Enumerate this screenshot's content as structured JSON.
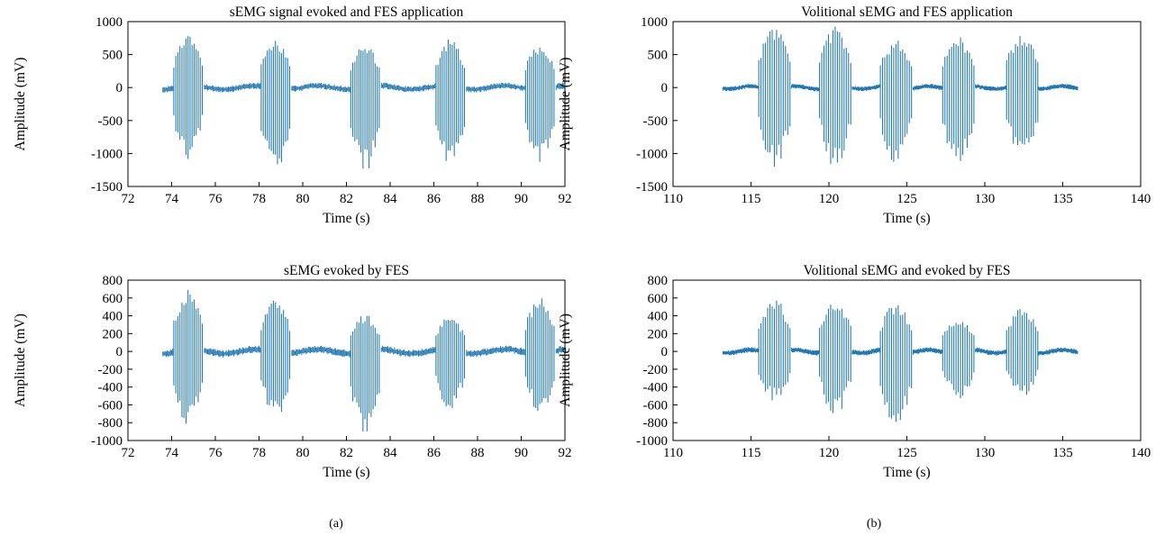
{
  "colors": {
    "trace": "#1f77b4",
    "axes": "#000000"
  },
  "captions": {
    "a": "(a)",
    "b": "(b)"
  },
  "chart_data": [
    {
      "type": "line",
      "title": "sEMG signal evoked and FES application",
      "xlabel": "Time (s)",
      "ylabel": "Amplitude (mV)",
      "xlim": [
        72,
        92
      ],
      "ylim": [
        -1500,
        1000
      ],
      "xticks": [
        72,
        74,
        76,
        78,
        80,
        82,
        84,
        86,
        88,
        90,
        92
      ],
      "yticks": [
        -1500,
        -1000,
        -500,
        0,
        500,
        1000
      ],
      "grid": false,
      "legend": "none",
      "signal_span": [
        73.6,
        92
      ],
      "bursts": [
        {
          "start": 74.1,
          "end": 75.4,
          "pos_peak": 790,
          "neg_peak": -1100
        },
        {
          "start": 78.1,
          "end": 79.4,
          "pos_peak": 760,
          "neg_peak": -1300
        },
        {
          "start": 82.2,
          "end": 83.5,
          "pos_peak": 660,
          "neg_peak": -1300
        },
        {
          "start": 86.1,
          "end": 87.4,
          "pos_peak": 740,
          "neg_peak": -1220
        },
        {
          "start": 90.2,
          "end": 91.5,
          "pos_peak": 660,
          "neg_peak": -1180
        }
      ],
      "baseline_amplitude": 80
    },
    {
      "type": "line",
      "title": "Volitional sEMG and FES application",
      "xlabel": "Time (s)",
      "ylabel": "Amplitude (mV)",
      "xlim": [
        110,
        140
      ],
      "ylim": [
        -1500,
        1000
      ],
      "xticks": [
        110,
        115,
        120,
        125,
        130,
        135,
        140
      ],
      "yticks": [
        -1500,
        -1000,
        -500,
        0,
        500,
        1000
      ],
      "grid": false,
      "legend": "none",
      "signal_span": [
        113.2,
        136
      ],
      "bursts": [
        {
          "start": 115.5,
          "end": 117.5,
          "pos_peak": 930,
          "neg_peak": -1220
        },
        {
          "start": 119.4,
          "end": 121.4,
          "pos_peak": 930,
          "neg_peak": -1220
        },
        {
          "start": 123.3,
          "end": 125.3,
          "pos_peak": 750,
          "neg_peak": -1160
        },
        {
          "start": 127.3,
          "end": 129.3,
          "pos_peak": 780,
          "neg_peak": -1170
        },
        {
          "start": 131.4,
          "end": 133.4,
          "pos_peak": 850,
          "neg_peak": -1100
        }
      ],
      "baseline_amplitude": 60
    },
    {
      "type": "line",
      "title": "sEMG evoked by FES",
      "xlabel": "Time (s)",
      "ylabel": "Amplitude (mV)",
      "xlim": [
        72,
        92
      ],
      "ylim": [
        -1000,
        800
      ],
      "xticks": [
        72,
        74,
        76,
        78,
        80,
        82,
        84,
        86,
        88,
        90,
        92
      ],
      "yticks": [
        -1000,
        -800,
        -600,
        -400,
        -200,
        0,
        200,
        400,
        600,
        800
      ],
      "grid": false,
      "legend": "none",
      "signal_span": [
        73.6,
        92
      ],
      "bursts": [
        {
          "start": 74.1,
          "end": 75.4,
          "pos_peak": 690,
          "neg_peak": -830
        },
        {
          "start": 78.1,
          "end": 79.4,
          "pos_peak": 600,
          "neg_peak": -760
        },
        {
          "start": 82.2,
          "end": 83.5,
          "pos_peak": 420,
          "neg_peak": -930
        },
        {
          "start": 86.1,
          "end": 87.4,
          "pos_peak": 400,
          "neg_peak": -660
        },
        {
          "start": 90.2,
          "end": 91.5,
          "pos_peak": 620,
          "neg_peak": -720
        }
      ],
      "baseline_amplitude": 70
    },
    {
      "type": "line",
      "title": "Volitional sEMG and evoked by FES",
      "xlabel": "Time (s)",
      "ylabel": "Amplitude (mV)",
      "xlim": [
        110,
        140
      ],
      "ylim": [
        -1000,
        800
      ],
      "xticks": [
        110,
        115,
        120,
        125,
        130,
        135,
        140
      ],
      "yticks": [
        -1000,
        -800,
        -600,
        -400,
        -200,
        0,
        200,
        400,
        600,
        800
      ],
      "grid": false,
      "legend": "none",
      "signal_span": [
        113.2,
        136
      ],
      "bursts": [
        {
          "start": 115.5,
          "end": 117.5,
          "pos_peak": 600,
          "neg_peak": -560
        },
        {
          "start": 119.4,
          "end": 121.4,
          "pos_peak": 600,
          "neg_peak": -730
        },
        {
          "start": 123.3,
          "end": 125.3,
          "pos_peak": 560,
          "neg_peak": -830
        },
        {
          "start": 127.3,
          "end": 129.3,
          "pos_peak": 380,
          "neg_peak": -540
        },
        {
          "start": 131.4,
          "end": 133.4,
          "pos_peak": 510,
          "neg_peak": -530
        }
      ],
      "baseline_amplitude": 50
    }
  ]
}
